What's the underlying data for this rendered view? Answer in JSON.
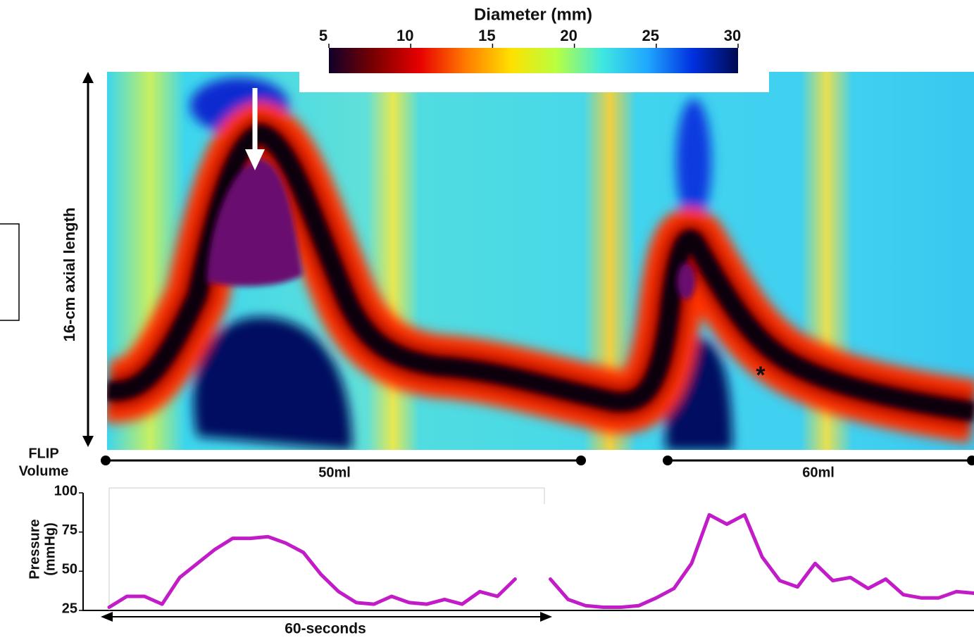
{
  "chart_data": [
    {
      "type": "heatmap",
      "colorbar": {
        "title": "Diameter (mm)",
        "lim": [
          5,
          30
        ],
        "ticks": [
          5,
          10,
          15,
          20,
          25,
          30
        ],
        "colors": [
          "#10002a",
          "#7a0000",
          "#e80000",
          "#ff7a00",
          "#ffe000",
          "#b8ff40",
          "#40e8e0",
          "#20a8ff",
          "#0030e0",
          "#000a50"
        ]
      },
      "ylabel": "16-cm axial length",
      "annotation": "*",
      "volume_title": [
        "FLIP",
        "Volume"
      ],
      "volumes": [
        "50ml",
        "60ml"
      ]
    },
    {
      "type": "line",
      "ylabel": [
        "Pressure",
        "(mmHg)"
      ],
      "ylim": [
        25,
        100
      ],
      "yticks": [
        25,
        50,
        75,
        100
      ],
      "time_label": "60-seconds",
      "series": [
        {
          "color": "#c21cc8",
          "values": [
            27,
            34,
            34,
            29,
            46,
            55,
            64,
            71,
            71,
            72,
            68,
            62,
            48,
            37,
            30,
            29,
            34,
            30,
            29,
            32,
            29,
            37,
            34,
            45,
            null,
            45,
            32,
            28,
            27,
            27,
            28,
            33,
            39,
            55,
            86,
            80,
            86,
            59,
            44,
            40,
            55,
            44,
            46,
            39,
            45,
            35,
            33,
            33,
            37,
            36
          ]
        }
      ]
    }
  ]
}
